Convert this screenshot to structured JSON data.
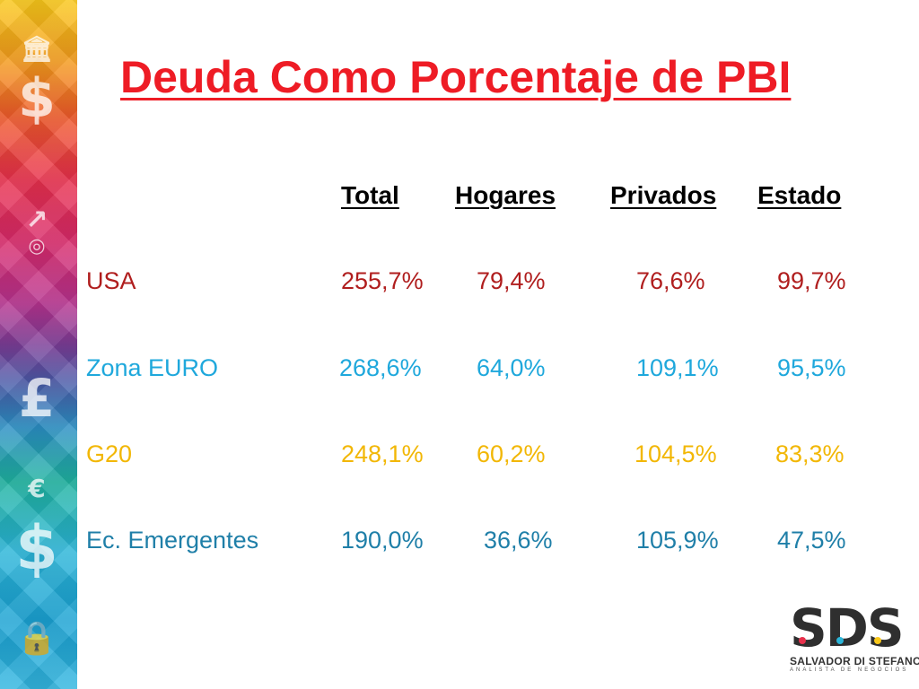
{
  "title": "Deuda Como Porcentaje de PBI",
  "headers": [
    "Total",
    "Hogares",
    "Privados",
    "Estado"
  ],
  "rows": [
    {
      "label": "USA",
      "total": "255,7%",
      "hogares": "79,4%",
      "privados": "76,6%",
      "estado": "99,7%",
      "color": "#b01e1e"
    },
    {
      "label": "Zona EURO",
      "total": "268,6%",
      "hogares": "64,0%",
      "privados": "109,1%",
      "estado": "95,5%",
      "color": "#1fa8dc"
    },
    {
      "label": "G20",
      "total": "248,1%",
      "hogares": "60,2%",
      "privados": "104,5%",
      "estado": "83,3%",
      "color": "#f2b705"
    },
    {
      "label": "Ec. Emergentes",
      "total": "190,0%",
      "hogares": "36,6%",
      "privados": "105,9%",
      "estado": "47,5%",
      "color": "#1f7fa8"
    }
  ],
  "logo": {
    "mark": "SDS",
    "name": "SALVADOR DI STEFANO",
    "tagline": "ANALISTA DE NEGOCIOS"
  },
  "colors": {
    "title": "#ee1c25"
  },
  "icons": [
    "bank-icon",
    "dollar-icon",
    "chart-icon",
    "coins-icon",
    "pound-icon",
    "euro-icon",
    "dollar-icon",
    "lock-icon"
  ]
}
